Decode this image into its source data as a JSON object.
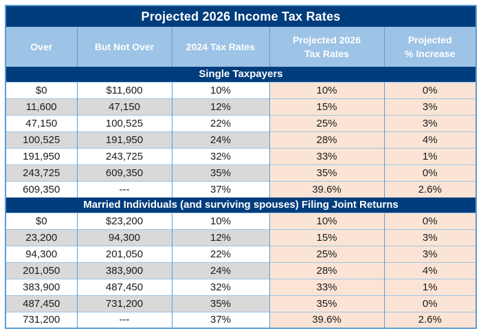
{
  "chart_data": {
    "type": "table",
    "title": "Projected 2026 Income Tax Rates",
    "columns": [
      "Over",
      "But Not Over",
      "2024 Tax Rates",
      "Projected 2026 Tax Rates",
      "Projected % Increase"
    ],
    "sections": [
      {
        "header": "Single Taxpayers",
        "rows": [
          [
            "$0",
            "$11,600",
            "10%",
            "10%",
            "0%"
          ],
          [
            "11,600",
            "47,150",
            "12%",
            "15%",
            "3%"
          ],
          [
            "47,150",
            "100,525",
            "22%",
            "25%",
            "3%"
          ],
          [
            "100,525",
            "191,950",
            "24%",
            "28%",
            "4%"
          ],
          [
            "191,950",
            "243,725",
            "32%",
            "33%",
            "1%"
          ],
          [
            "243,725",
            "609,350",
            "35%",
            "35%",
            "0%"
          ],
          [
            "609,350",
            "---",
            "37%",
            "39.6%",
            "2.6%"
          ]
        ]
      },
      {
        "header": "Married Individuals (and surviving spouses) Filing Joint Returns",
        "rows": [
          [
            "$0",
            "$23,200",
            "10%",
            "10%",
            "0%"
          ],
          [
            "23,200",
            "94,300",
            "12%",
            "15%",
            "3%"
          ],
          [
            "94,300",
            "201,050",
            "22%",
            "25%",
            "3%"
          ],
          [
            "201,050",
            "383,900",
            "24%",
            "28%",
            "4%"
          ],
          [
            "383,900",
            "487,450",
            "32%",
            "33%",
            "1%"
          ],
          [
            "487,450",
            "731,200",
            "35%",
            "35%",
            "0%"
          ],
          [
            "731,200",
            "---",
            "37%",
            "39.6%",
            "2.6%"
          ]
        ]
      }
    ],
    "layout": {
      "striping": "alternate gray rows on first three columns",
      "highlight_columns": "Projected 2026 Tax Rates and Projected % Increase shaded peach"
    }
  },
  "header": {
    "col1": "Over",
    "col2": "But Not Over",
    "col3": "2024 Tax Rates",
    "col4_line1": "Projected 2026",
    "col4_line2": "Tax Rates",
    "col5_line1": "Projected",
    "col5_line2": "% Increase"
  },
  "colors": {
    "navy": "#003D7D",
    "header_blue": "#9DC3E6",
    "border_blue": "#5B9BD5",
    "row_gray": "#D9D9D9",
    "peach": "#FBE4D5",
    "text_dark": "#1A1A1A"
  }
}
